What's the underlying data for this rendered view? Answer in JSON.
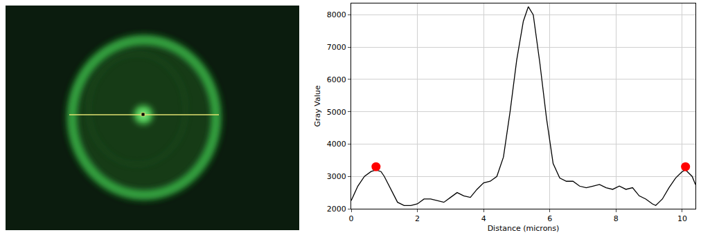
{
  "chart_data": {
    "type": "line",
    "xlabel": "Distance (microns)",
    "ylabel": "Gray Value",
    "x": [
      0,
      0.2,
      0.4,
      0.6,
      0.75,
      0.9,
      1.0,
      1.2,
      1.4,
      1.6,
      1.8,
      2.0,
      2.2,
      2.4,
      2.6,
      2.8,
      3.0,
      3.2,
      3.4,
      3.6,
      3.8,
      4.0,
      4.2,
      4.4,
      4.6,
      4.8,
      5.0,
      5.2,
      5.35,
      5.5,
      5.7,
      5.9,
      6.1,
      6.3,
      6.5,
      6.7,
      6.9,
      7.1,
      7.3,
      7.5,
      7.7,
      7.9,
      8.1,
      8.3,
      8.5,
      8.7,
      8.9,
      9.1,
      9.2,
      9.4,
      9.6,
      9.8,
      10.0,
      10.1,
      10.3,
      10.4
    ],
    "series": [
      {
        "type": "line",
        "color": "#000000",
        "values": [
          2250,
          2700,
          3000,
          3150,
          3200,
          3150,
          3000,
          2600,
          2200,
          2100,
          2100,
          2150,
          2300,
          2300,
          2250,
          2200,
          2350,
          2500,
          2400,
          2350,
          2600,
          2800,
          2850,
          3000,
          3600,
          5000,
          6600,
          7800,
          8250,
          8000,
          6500,
          4800,
          3400,
          2950,
          2850,
          2850,
          2700,
          2650,
          2700,
          2750,
          2650,
          2600,
          2700,
          2600,
          2650,
          2400,
          2300,
          2150,
          2100,
          2300,
          2650,
          2950,
          3150,
          3200,
          3000,
          2750
        ]
      },
      {
        "type": "scatter",
        "marker": "circle",
        "color": "#ff0000",
        "x": [
          0.75,
          10.1
        ],
        "values": [
          3300,
          3300
        ]
      }
    ],
    "xlim": [
      0,
      10.4
    ],
    "ylim": [
      2000,
      8350
    ],
    "xticks": [
      0,
      2,
      4,
      6,
      8,
      10
    ],
    "yticks": [
      2000,
      3000,
      4000,
      5000,
      6000,
      7000,
      8000
    ],
    "grid": true
  }
}
